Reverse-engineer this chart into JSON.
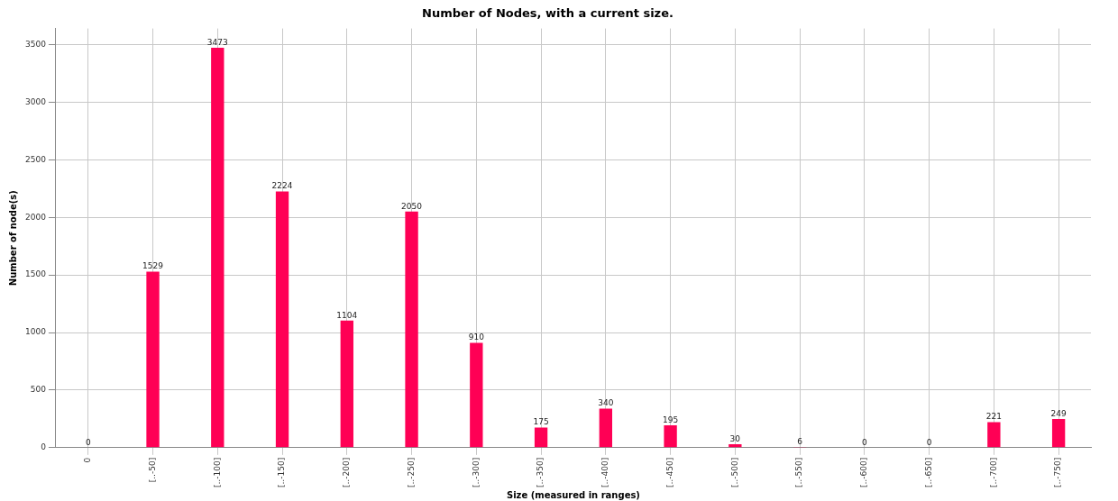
{
  "chart_data": {
    "type": "bar",
    "title": "Number of Nodes, with a current size.",
    "xlabel": "Size (measured in ranges)",
    "ylabel": "Number of node(s)",
    "categories": [
      "0",
      "[..-50]",
      "[..-100]",
      "[..-150]",
      "[..-200]",
      "[..-250]",
      "[..-300]",
      "[..-350]",
      "[..-400]",
      "[..-450]",
      "[..-500]",
      "[..-550]",
      "[..-600]",
      "[..-650]",
      "[..-700]",
      "[..-750]"
    ],
    "values": [
      0,
      1529,
      3473,
      2224,
      1104,
      2050,
      910,
      175,
      340,
      195,
      30,
      6,
      0,
      0,
      221,
      249
    ],
    "color": "#ff0055",
    "ylim": [
      0,
      3640
    ],
    "yticks": [
      0,
      500,
      1000,
      1500,
      2000,
      2500,
      3000,
      3500
    ],
    "grid": true,
    "legend": false,
    "data_labels": true
  }
}
